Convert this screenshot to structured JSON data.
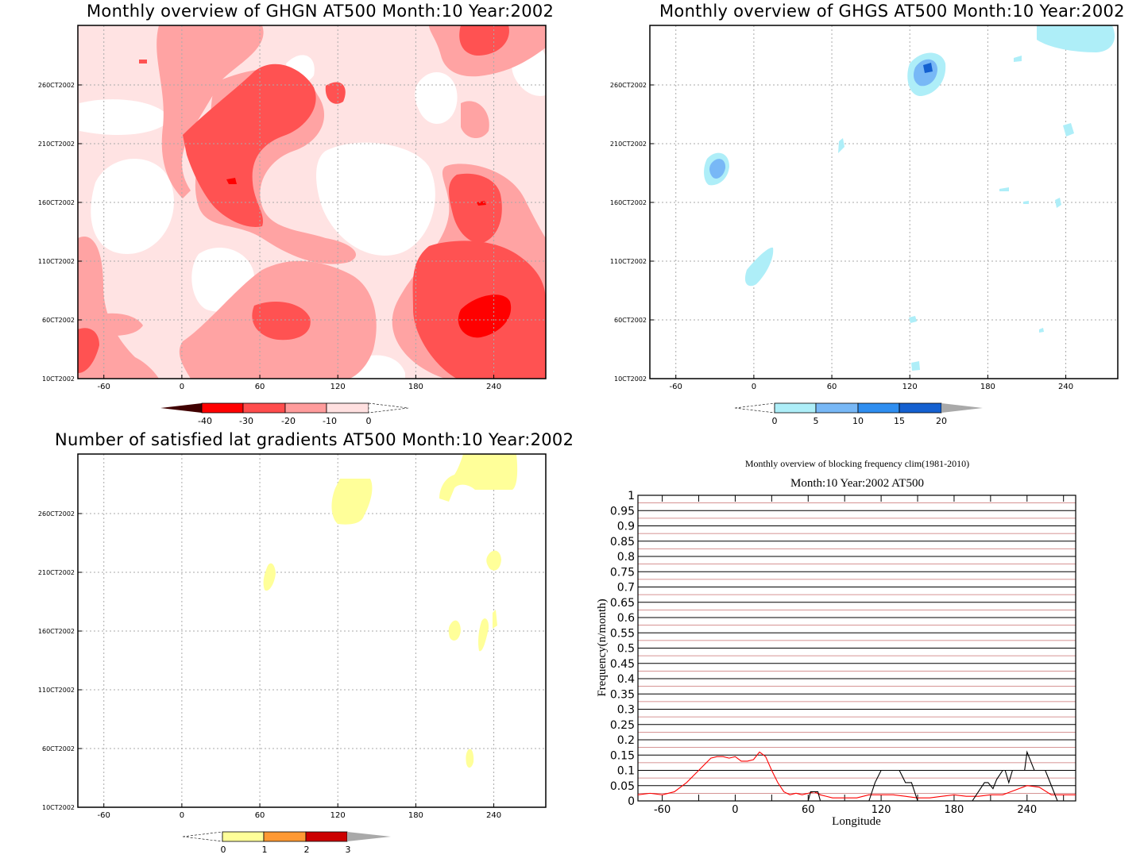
{
  "panel_ghgn": {
    "title": "Monthly overview of GHGN AT500 Month:10 Year:2002",
    "y_ticks": [
      "10CT2002",
      "60CT2002",
      "110CT2002",
      "160CT2002",
      "210CT2002",
      "260CT2002"
    ],
    "x_ticks": [
      "-60",
      "0",
      "60",
      "120",
      "180",
      "240"
    ],
    "colorbar": [
      "-40",
      "-30",
      "-20",
      "-10",
      "0"
    ],
    "colors": [
      "#400000",
      "#ff0000",
      "#ff4d4d",
      "#ff9c9c",
      "#ffe0e0",
      "#ffffff"
    ]
  },
  "panel_ghgs": {
    "title": "Monthly overview of GHGS AT500 Month:10 Year:2002",
    "y_ticks": [
      "10CT2002",
      "60CT2002",
      "110CT2002",
      "160CT2002",
      "210CT2002",
      "260CT2002"
    ],
    "x_ticks": [
      "-60",
      "0",
      "60",
      "120",
      "180",
      "240"
    ],
    "colorbar": [
      "0",
      "5",
      "10",
      "15",
      "20"
    ],
    "colors": [
      "#aeeef8",
      "#78b8f6",
      "#2f8ef0",
      "#1460d0",
      "#a9a9a9"
    ]
  },
  "panel_grad": {
    "title": "Number of satisfied lat gradients AT500 Month:10 Year:2002",
    "y_ticks": [
      "10CT2002",
      "60CT2002",
      "110CT2002",
      "160CT2002",
      "210CT2002",
      "260CT2002"
    ],
    "x_ticks": [
      "-60",
      "0",
      "60",
      "120",
      "180",
      "240"
    ],
    "colorbar": [
      "0",
      "1",
      "2",
      "3"
    ],
    "colors": [
      "#ffff99",
      "#ff9933",
      "#cc0000",
      "#a9a9a9"
    ]
  },
  "panel_freq": {
    "title": "Monthly overview of blocking frequency clim(1981-2010)",
    "subtitle": "Month:10 Year:2002  AT500",
    "ylabel": "Frequency(n/month)",
    "xlabel": "Longitude",
    "x_ticks": [
      "-60",
      "0",
      "60",
      "120",
      "180",
      "240"
    ],
    "y_ticks": [
      "0",
      "0.05",
      "0.1",
      "0.15",
      "0.2",
      "0.25",
      "0.3",
      "0.35",
      "0.4",
      "0.45",
      "0.5",
      "0.55",
      "0.6",
      "0.65",
      "0.7",
      "0.75",
      "0.8",
      "0.85",
      "0.9",
      "0.95",
      "1"
    ]
  },
  "chart_data": [
    {
      "type": "heatmap",
      "title": "Monthly overview of GHGN AT500 Month:10 Year:2002",
      "x_ticks": [
        -60,
        0,
        60,
        120,
        180,
        240
      ],
      "y_ticks": [
        "10CT2002",
        "60CT2002",
        "110CT2002",
        "160CT2002",
        "210CT2002",
        "260CT2002"
      ],
      "colorbar_levels": [
        -40,
        -30,
        -20,
        -10,
        0
      ],
      "grid": true
    },
    {
      "type": "heatmap",
      "title": "Monthly overview of GHGS AT500 Month:10 Year:2002",
      "x_ticks": [
        -60,
        0,
        60,
        120,
        180,
        240
      ],
      "y_ticks": [
        "10CT2002",
        "60CT2002",
        "110CT2002",
        "160CT2002",
        "210CT2002",
        "260CT2002"
      ],
      "colorbar_levels": [
        0,
        5,
        10,
        15,
        20
      ],
      "grid": true
    },
    {
      "type": "heatmap",
      "title": "Number of satisfied lat gradients AT500 Month:10 Year:2002",
      "x_ticks": [
        -60,
        0,
        60,
        120,
        180,
        240
      ],
      "y_ticks": [
        "10CT2002",
        "60CT2002",
        "110CT2002",
        "160CT2002",
        "210CT2002",
        "260CT2002"
      ],
      "colorbar_levels": [
        0,
        1,
        2,
        3
      ],
      "grid": true
    },
    {
      "type": "line",
      "title": "Monthly overview of blocking frequency clim(1981-2010)",
      "subtitle": "Month:10 Year:2002  AT500",
      "xlabel": "Longitude",
      "ylabel": "Frequency(n/month)",
      "xlim": [
        -80,
        280
      ],
      "ylim": [
        0,
        1
      ],
      "grid": true,
      "series": [
        {
          "color": "#ff0000",
          "x": [
            -80,
            -70,
            -60,
            -50,
            -40,
            -30,
            -20,
            -15,
            -10,
            -5,
            0,
            5,
            10,
            15,
            20,
            25,
            30,
            35,
            40,
            45,
            50,
            55,
            60,
            65,
            70,
            75,
            80,
            90,
            100,
            110,
            120,
            130,
            140,
            150,
            160,
            170,
            180,
            190,
            200,
            210,
            220,
            230,
            240,
            250,
            260,
            270,
            280
          ],
          "y": [
            0.02,
            0.025,
            0.02,
            0.03,
            0.06,
            0.1,
            0.14,
            0.145,
            0.145,
            0.14,
            0.145,
            0.13,
            0.13,
            0.135,
            0.16,
            0.145,
            0.1,
            0.06,
            0.03,
            0.02,
            0.025,
            0.02,
            0.025,
            0.03,
            0.02,
            0.015,
            0.01,
            0.01,
            0.01,
            0.02,
            0.02,
            0.02,
            0.015,
            0.01,
            0.01,
            0.015,
            0.02,
            0.015,
            0.015,
            0.02,
            0.02,
            0.035,
            0.05,
            0.045,
            0.02,
            0.02,
            0.02
          ]
        },
        {
          "color": "#000000",
          "x": [
            -80,
            60,
            62,
            64,
            66,
            68,
            70,
            110,
            115,
            120,
            135,
            140,
            145,
            150,
            195,
            200,
            205,
            208,
            212,
            215,
            220,
            222,
            225,
            228,
            232,
            238,
            240,
            243,
            246,
            252,
            255,
            260,
            265,
            280
          ],
          "y": [
            0,
            0,
            0.03,
            0.03,
            0.03,
            0.03,
            0,
            0,
            0.06,
            0.1,
            0.1,
            0.06,
            0.06,
            0,
            0,
            0.03,
            0.06,
            0.06,
            0.04,
            0.07,
            0.1,
            0.1,
            0.06,
            0.1,
            0.1,
            0.1,
            0.16,
            0.13,
            0.1,
            0.1,
            0.1,
            0.05,
            0,
            0
          ]
        }
      ]
    }
  ]
}
